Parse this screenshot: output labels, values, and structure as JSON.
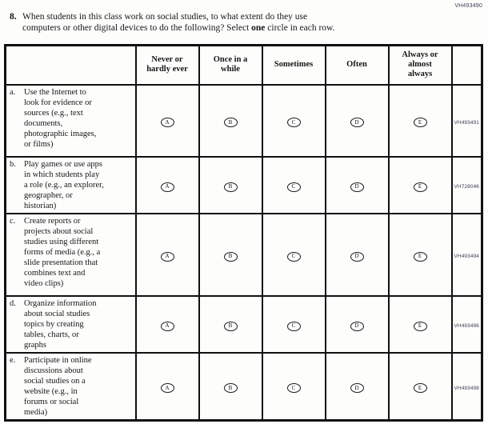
{
  "page_id": "VH493490",
  "question": {
    "number": "8.",
    "line1": "When students in this class work on social studies, to what extent do they use",
    "line2_pre": "computers or other digital devices to do the following? Select ",
    "line2_bold": "one",
    "line2_post": " circle in each row."
  },
  "table": {
    "columns": [
      {
        "label": "Never or hardly ever",
        "lines": [
          "Never or",
          "hardly ever"
        ]
      },
      {
        "label": "Once in a while",
        "lines": [
          "Once in a",
          "while"
        ]
      },
      {
        "label": "Sometimes",
        "lines": [
          "Sometimes"
        ]
      },
      {
        "label": "Often",
        "lines": [
          "Often"
        ]
      },
      {
        "label": "Always or almost always",
        "lines": [
          "Always or",
          "almost",
          "always"
        ]
      }
    ],
    "options": [
      "A",
      "B",
      "C",
      "D",
      "E"
    ],
    "rows": [
      {
        "letter": "a.",
        "text": "Use the Internet to look for evidence or sources (e.g., text documents, photographic images, or films)",
        "lines": [
          "Use the Internet to",
          "look for evidence or",
          "sources (e.g., text",
          "documents,",
          "photographic images,",
          "or films)"
        ],
        "id": "VH493491"
      },
      {
        "letter": "b.",
        "text": "Play games or use apps in which students play a role (e.g., an explorer, geographer, or historian)",
        "lines": [
          "Play games or use apps",
          "in which students play",
          "a role (e.g., an explorer,",
          "geographer, or",
          "historian)"
        ],
        "id": "VH728046"
      },
      {
        "letter": "c.",
        "text": "Create reports or projects about social studies using different forms of media (e.g., a slide presentation that combines text and video clips)",
        "lines": [
          "Create reports or",
          "projects about social",
          "studies using different",
          "forms of media (e.g., a",
          "slide presentation that",
          "combines text and",
          "video clips)"
        ],
        "id": "VH493494"
      },
      {
        "letter": "d.",
        "text": "Organize information about social studies topics by creating tables, charts, or graphs",
        "lines": [
          "Organize information",
          "about social studies",
          "topics by creating",
          "tables, charts, or",
          "graphs"
        ],
        "id": "VH493496"
      },
      {
        "letter": "e.",
        "text": "Participate in online discussions about social studies on a website (e.g., in forums or social media)",
        "lines": [
          "Participate in online",
          "discussions about",
          "social studies on a",
          "website (e.g., in",
          "forums or social",
          "media)"
        ],
        "id": "VH493498"
      }
    ]
  }
}
